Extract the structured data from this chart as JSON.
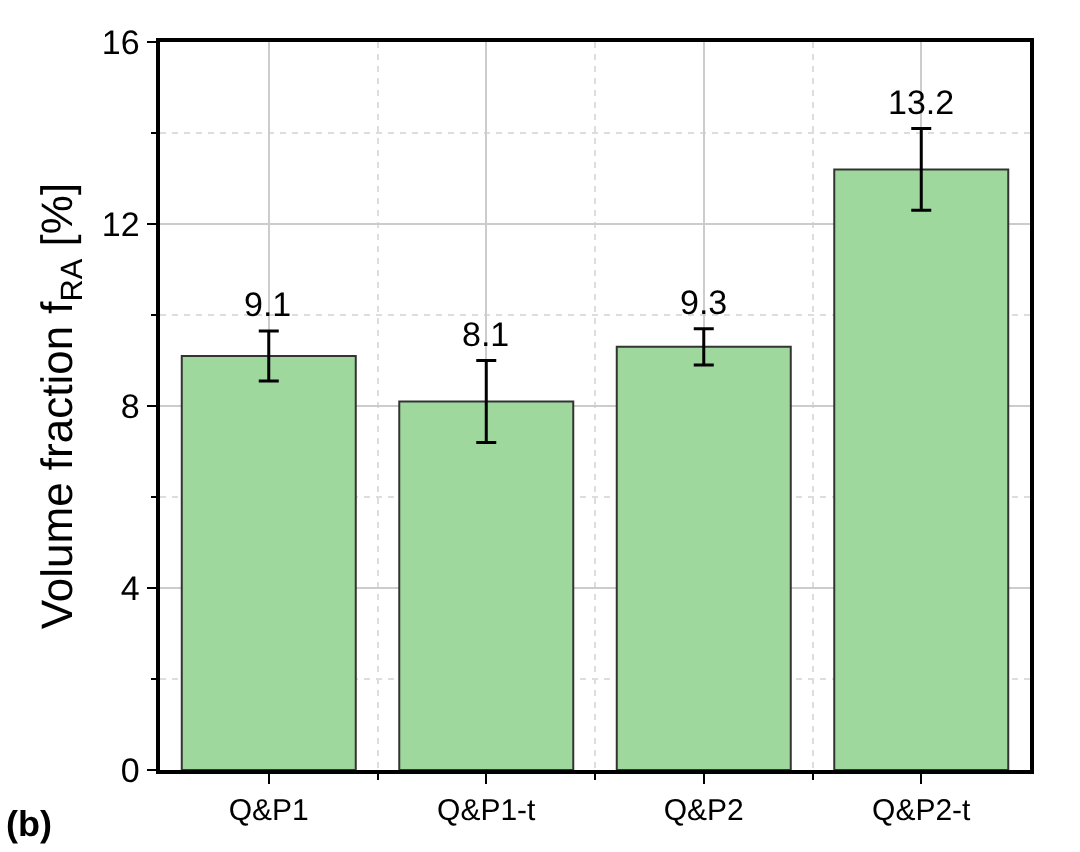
{
  "chart_data": {
    "type": "bar",
    "categories": [
      "Q&P1",
      "Q&P1-t",
      "Q&P2",
      "Q&P2-t"
    ],
    "values": [
      9.1,
      8.1,
      9.3,
      13.2
    ],
    "errors": [
      0.55,
      0.9,
      0.4,
      0.9
    ],
    "color": "#9fd89c",
    "ylabel": "Volume fraction f$_{RA}$ [%]",
    "ylim": [
      0,
      16
    ],
    "yticks": [
      0,
      4,
      8,
      12,
      16
    ],
    "grid": true,
    "data_labels": true,
    "annotations": [
      "(b)"
    ]
  }
}
